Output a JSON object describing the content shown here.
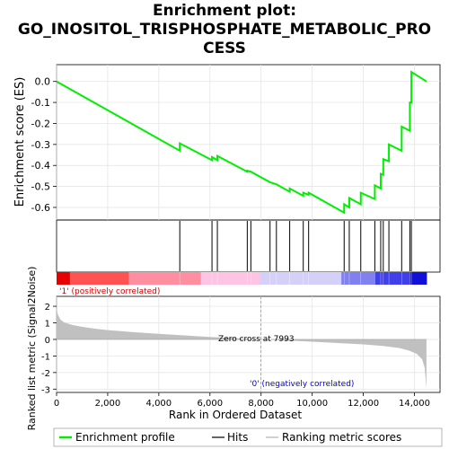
{
  "title_lines": [
    "Enrichment plot:",
    "GO_INOSITOL_TRISPHOSPHATE_METABOLIC_PRO",
    "CESS"
  ],
  "colors": {
    "enrichment_line": "#00ee00",
    "hits": "#000000",
    "metric_fill": "#c0c0c0",
    "zero_cross": "#aaaaaa"
  },
  "legend": {
    "enrichment_profile": "Enrichment profile",
    "hits": "Hits",
    "ranking_metric": "Ranking metric scores"
  },
  "chart_data": [
    {
      "type": "line",
      "name": "enrichment-score-panel",
      "ylabel": "Enrichment score (ES)",
      "xlim": [
        0,
        15000
      ],
      "ylim": [
        -0.66,
        0.08
      ],
      "yticks": [
        0.0,
        -0.1,
        -0.2,
        -0.3,
        -0.4,
        -0.5,
        -0.6
      ],
      "ytick_labels": [
        "0.0",
        "-0.1",
        "-0.2",
        "-0.3",
        "-0.4",
        "-0.5",
        "-0.6"
      ],
      "grid": true,
      "series": [
        {
          "x": [
            0,
            4820,
            4820,
            6080,
            6080,
            6290,
            6290,
            7460,
            7460,
            7600,
            7600,
            8350,
            8350,
            8600,
            8600,
            9120,
            9120,
            9650,
            9650,
            9860,
            9860,
            11250,
            11250,
            11450,
            11450,
            11900,
            11900,
            12450,
            12450,
            12680,
            12680,
            12780,
            12780,
            13000,
            13000,
            13500,
            13500,
            13820,
            13820,
            13880,
            13880,
            14470
          ],
          "y": [
            0.0,
            -0.33,
            -0.295,
            -0.375,
            -0.36,
            -0.375,
            -0.355,
            -0.43,
            -0.425,
            -0.43,
            -0.43,
            -0.48,
            -0.48,
            -0.49,
            -0.49,
            -0.525,
            -0.51,
            -0.545,
            -0.53,
            -0.54,
            -0.53,
            -0.625,
            -0.585,
            -0.6,
            -0.555,
            -0.585,
            -0.53,
            -0.56,
            -0.495,
            -0.51,
            -0.44,
            -0.445,
            -0.37,
            -0.38,
            -0.3,
            -0.33,
            -0.215,
            -0.235,
            -0.1,
            -0.1,
            0.045,
            0.0
          ]
        }
      ]
    },
    {
      "type": "bar",
      "name": "hits-panel",
      "hit_positions": [
        4820,
        6080,
        6290,
        7460,
        7600,
        8350,
        8600,
        9120,
        9650,
        9860,
        11250,
        11450,
        11900,
        12450,
        12680,
        12780,
        13000,
        13500,
        13820,
        13880
      ]
    },
    {
      "type": "heatmap",
      "name": "rank-color-bar",
      "label_positive": "'1' (positively correlated)",
      "label_negative": "'0' (negatively correlated)"
    },
    {
      "type": "area",
      "name": "ranked-metric-panel",
      "xlabel": "Rank in Ordered Dataset",
      "ylabel": "Ranked list metric (Signal2Noise)",
      "xlim": [
        0,
        15000
      ],
      "ylim": [
        -3.2,
        2.6
      ],
      "xticks": [
        0,
        2000,
        4000,
        6000,
        8000,
        10000,
        12000,
        14000
      ],
      "xtick_labels": [
        "0",
        "2,000",
        "4,000",
        "6,000",
        "8,000",
        "10,000",
        "12,000",
        "14,000"
      ],
      "yticks": [
        2,
        1,
        0,
        -1,
        -2,
        -3
      ],
      "ytick_labels": [
        "2",
        "1",
        "0",
        "-1",
        "-2",
        "-3"
      ],
      "zero_cross_rank": 7993,
      "zero_cross_label": "Zero cross at 7993",
      "x": [
        0,
        50,
        150,
        300,
        600,
        1000,
        1500,
        2000,
        3000,
        4000,
        5000,
        6000,
        7000,
        7993,
        9000,
        10000,
        11000,
        12000,
        12800,
        13400,
        13800,
        14100,
        14300,
        14400,
        14470
      ],
      "y": [
        1.9,
        1.5,
        1.2,
        1.02,
        0.88,
        0.76,
        0.65,
        0.56,
        0.44,
        0.34,
        0.24,
        0.15,
        0.07,
        0.0,
        -0.07,
        -0.14,
        -0.22,
        -0.3,
        -0.4,
        -0.52,
        -0.68,
        -0.88,
        -1.2,
        -1.7,
        -2.95
      ]
    }
  ]
}
